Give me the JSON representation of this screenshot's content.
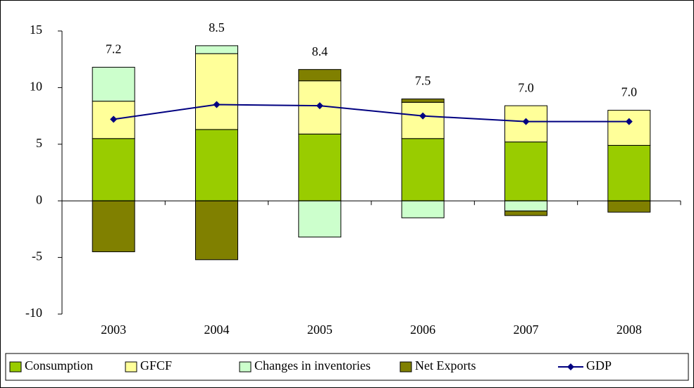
{
  "chart_data": {
    "type": "bar",
    "categories": [
      "2003",
      "2004",
      "2005",
      "2006",
      "2007",
      "2008"
    ],
    "series": [
      {
        "name": "Consumption",
        "color": "#99cc00",
        "values": [
          5.5,
          6.3,
          5.9,
          5.5,
          5.2,
          4.9
        ]
      },
      {
        "name": "GFCF",
        "color": "#ffff99",
        "values": [
          3.3,
          6.7,
          4.7,
          3.2,
          3.2,
          3.1
        ]
      },
      {
        "name": "Changes in inventories",
        "color": "#ccffcc",
        "values": [
          3.0,
          0.7,
          -3.2,
          -1.5,
          -0.9,
          0
        ]
      },
      {
        "name": "Net Exports",
        "color": "#808000",
        "values": [
          -4.5,
          -5.2,
          1.0,
          0.3,
          -0.4,
          -1.0
        ]
      },
      {
        "name": "GDP",
        "type": "line",
        "color": "#000080",
        "values": [
          7.2,
          8.5,
          8.4,
          7.5,
          7.0,
          7.0
        ],
        "value_labels": [
          "7.2",
          "8.5",
          "8.4",
          "7.5",
          "7.0",
          "7.0"
        ]
      }
    ],
    "ylim": [
      -10,
      15
    ],
    "yticks": [
      -10,
      -5,
      0,
      5,
      10,
      15
    ],
    "legend": "bottom"
  }
}
